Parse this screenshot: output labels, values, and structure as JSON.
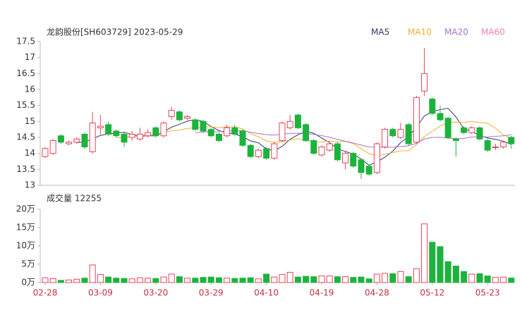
{
  "chart_data": {
    "type": "candlestick",
    "title": "龙韵股份[SH603729] 2023-05-29",
    "ma_legend": [
      {
        "name": "MA5",
        "color": "#2f3a6b",
        "window": 5
      },
      {
        "name": "MA10",
        "color": "#f0b030",
        "window": 10
      },
      {
        "name": "MA20",
        "color": "#b070d0",
        "window": 20
      },
      {
        "name": "MA60",
        "color": "#f080b0",
        "window": 60
      }
    ],
    "up_color": "#e8435a",
    "down_color": "#1cb33c",
    "categories": [
      "02-28",
      null,
      null,
      null,
      null,
      null,
      null,
      "03-09",
      null,
      null,
      null,
      null,
      null,
      null,
      "03-20",
      null,
      null,
      null,
      null,
      null,
      null,
      "03-29",
      null,
      null,
      null,
      null,
      null,
      null,
      "04-10",
      null,
      null,
      null,
      null,
      null,
      null,
      "04-19",
      null,
      null,
      null,
      null,
      null,
      null,
      "04-28",
      null,
      null,
      null,
      null,
      null,
      null,
      "05-12",
      null,
      null,
      null,
      null,
      null,
      null,
      "05-23",
      null,
      null,
      null
    ],
    "open": [
      13.9,
      14.0,
      14.55,
      14.3,
      14.35,
      14.6,
      14.05,
      14.8,
      14.9,
      14.7,
      14.6,
      14.5,
      14.45,
      14.55,
      14.8,
      14.55,
      15.15,
      15.3,
      15.1,
      15.05,
      15.0,
      14.75,
      14.6,
      14.55,
      14.8,
      14.7,
      14.25,
      13.9,
      14.15,
      13.85,
      14.4,
      14.8,
      15.2,
      14.9,
      14.4,
      13.95,
      14.1,
      14.3,
      13.7,
      14.0,
      13.8,
      13.6,
      13.4,
      14.2,
      14.75,
      14.5,
      14.9,
      14.35,
      15.95,
      15.7,
      15.25,
      15.1,
      14.45,
      14.8,
      14.65,
      14.8,
      14.4,
      14.2,
      14.2,
      14.5
    ],
    "high": [
      14.2,
      14.45,
      14.6,
      14.4,
      14.5,
      14.65,
      15.3,
      15.2,
      15.0,
      14.75,
      14.65,
      14.7,
      14.8,
      14.75,
      14.85,
      15.0,
      15.45,
      15.35,
      15.2,
      15.1,
      15.05,
      14.8,
      14.65,
      14.9,
      14.9,
      14.75,
      14.3,
      14.15,
      14.2,
      14.35,
      15.0,
      15.2,
      15.25,
      14.95,
      14.45,
      14.25,
      14.35,
      14.35,
      14.05,
      14.05,
      13.85,
      13.65,
      14.35,
      14.8,
      14.8,
      14.95,
      14.95,
      15.8,
      17.3,
      15.75,
      15.5,
      15.15,
      14.5,
      14.85,
      14.85,
      14.85,
      14.45,
      14.3,
      14.4,
      14.55
    ],
    "low": [
      13.85,
      13.95,
      14.3,
      14.25,
      14.3,
      14.15,
      14.0,
      14.6,
      14.55,
      14.5,
      14.2,
      14.4,
      14.4,
      14.5,
      14.5,
      14.5,
      15.05,
      15.0,
      15.05,
      14.7,
      14.65,
      14.5,
      14.35,
      14.5,
      14.55,
      14.2,
      13.85,
      13.85,
      13.8,
      13.8,
      14.35,
      14.75,
      14.75,
      14.35,
      13.95,
      13.9,
      14.05,
      13.75,
      13.5,
      13.55,
      13.2,
      13.3,
      13.35,
      14.15,
      14.5,
      14.45,
      14.25,
      14.3,
      15.8,
      15.2,
      15.0,
      14.45,
      13.9,
      14.6,
      14.6,
      14.4,
      14.05,
      14.1,
      14.15,
      14.15
    ],
    "close": [
      14.15,
      14.4,
      14.35,
      14.35,
      14.45,
      14.2,
      14.95,
      14.85,
      14.6,
      14.55,
      14.35,
      14.6,
      14.6,
      14.65,
      14.55,
      14.95,
      15.35,
      15.05,
      15.15,
      14.75,
      14.7,
      14.55,
      14.4,
      14.8,
      14.6,
      14.25,
      13.9,
      14.1,
      13.85,
      14.3,
      14.95,
      15.0,
      14.8,
      14.4,
      14.0,
      14.2,
      14.3,
      13.8,
      14.0,
      13.6,
      13.4,
      13.35,
      14.3,
      14.75,
      14.55,
      14.75,
      14.3,
      15.75,
      16.5,
      15.25,
      15.05,
      14.5,
      14.4,
      14.65,
      14.8,
      14.45,
      14.1,
      14.2,
      14.35,
      14.3
    ],
    "volume_title": "成交量 12255",
    "volume": [
      1.3,
      1.1,
      0.6,
      0.7,
      0.9,
      1.2,
      4.8,
      2.2,
      1.5,
      1.2,
      1.1,
      1.0,
      1.3,
      1.2,
      1.1,
      1.5,
      2.3,
      1.6,
      1.2,
      1.2,
      1.4,
      1.5,
      1.3,
      1.2,
      1.1,
      1.2,
      1.3,
      1.0,
      2.3,
      1.5,
      2.2,
      2.8,
      1.5,
      1.7,
      1.6,
      1.8,
      1.8,
      1.6,
      1.6,
      1.4,
      1.5,
      1.0,
      2.3,
      2.5,
      2.4,
      3.0,
      1.6,
      3.8,
      16.0,
      11.0,
      9.8,
      5.7,
      4.5,
      3.0,
      2.3,
      2.4,
      1.8,
      1.4,
      1.5,
      1.2255
    ],
    "ylim": [
      13,
      17.5
    ],
    "yticks": [
      13,
      13.5,
      14,
      14.5,
      15,
      15.5,
      16,
      16.5,
      17,
      17.5
    ],
    "vlim": [
      0,
      20
    ],
    "vticks": [
      {
        "value": 0,
        "label": "0万"
      },
      {
        "value": 5,
        "label": "5万"
      },
      {
        "value": 10,
        "label": "10万"
      },
      {
        "value": 15,
        "label": "15万"
      },
      {
        "value": 20,
        "label": "20万"
      }
    ]
  }
}
